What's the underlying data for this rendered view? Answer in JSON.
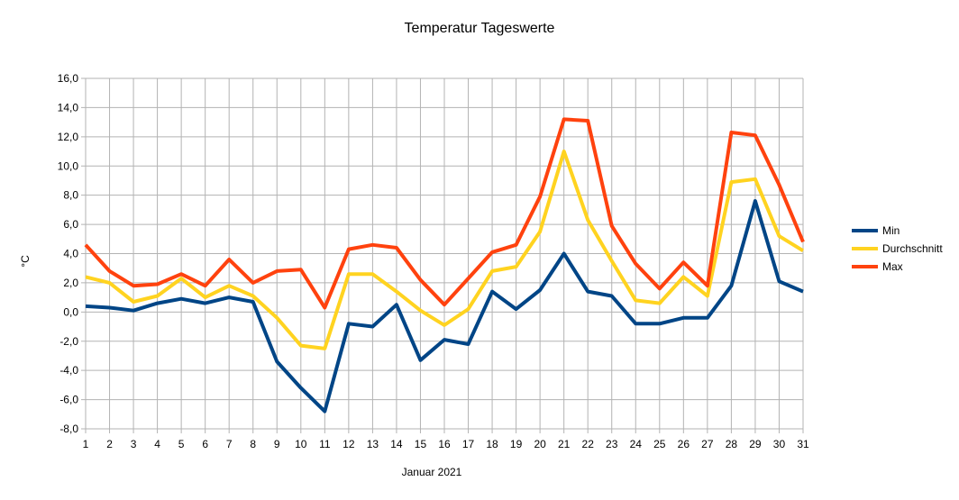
{
  "chart_data": {
    "type": "line",
    "title": "Temperatur Tageswerte",
    "xlabel": "Januar 2021",
    "ylabel": "°C",
    "categories": [
      "1",
      "2",
      "3",
      "4",
      "5",
      "6",
      "7",
      "8",
      "9",
      "10",
      "11",
      "12",
      "13",
      "14",
      "15",
      "16",
      "17",
      "18",
      "19",
      "20",
      "21",
      "22",
      "23",
      "24",
      "25",
      "26",
      "27",
      "28",
      "29",
      "30",
      "31"
    ],
    "ylim": [
      -8,
      16
    ],
    "ytick_step": 2,
    "ytick_labels": [
      "16,0",
      "14,0",
      "12,0",
      "10,0",
      "8,0",
      "6,0",
      "4,0",
      "2,0",
      "0,0",
      "-2,0",
      "-4,0",
      "-6,0",
      "-8,0"
    ],
    "grid": true,
    "legend_position": "right",
    "series": [
      {
        "name": "Min",
        "color": "#004586",
        "values": [
          0.4,
          0.3,
          0.1,
          0.6,
          0.9,
          0.6,
          1.0,
          0.7,
          -3.4,
          -5.2,
          -6.8,
          -0.8,
          -1.0,
          0.5,
          -3.3,
          -1.9,
          -2.2,
          1.4,
          0.2,
          1.5,
          4.0,
          1.4,
          1.1,
          -0.8,
          -0.8,
          -0.4,
          -0.4,
          1.8,
          7.6,
          2.1,
          1.4
        ]
      },
      {
        "name": "Durchschnitt",
        "color": "#ffd320",
        "values": [
          2.4,
          2.0,
          0.7,
          1.1,
          2.3,
          1.0,
          1.8,
          1.1,
          -0.4,
          -2.3,
          -2.5,
          2.6,
          2.6,
          1.4,
          0.1,
          -0.9,
          0.2,
          2.8,
          3.1,
          5.5,
          11.0,
          6.3,
          3.5,
          0.8,
          0.6,
          2.4,
          1.1,
          8.9,
          9.1,
          5.2,
          4.2
        ]
      },
      {
        "name": "Max",
        "color": "#ff420e",
        "values": [
          4.6,
          2.8,
          1.8,
          1.9,
          2.6,
          1.8,
          3.6,
          2.0,
          2.8,
          2.9,
          0.3,
          4.3,
          4.6,
          4.4,
          2.2,
          0.5,
          2.3,
          4.1,
          4.6,
          7.9,
          13.2,
          13.1,
          5.9,
          3.3,
          1.6,
          3.4,
          1.8,
          12.3,
          12.1,
          8.7,
          4.8
        ]
      }
    ]
  }
}
